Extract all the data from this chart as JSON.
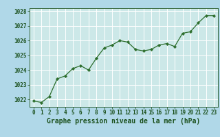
{
  "x": [
    0,
    1,
    2,
    3,
    4,
    5,
    6,
    7,
    8,
    9,
    10,
    11,
    12,
    13,
    14,
    15,
    16,
    17,
    18,
    19,
    20,
    21,
    22,
    23
  ],
  "y": [
    1021.9,
    1021.8,
    1022.2,
    1023.4,
    1023.6,
    1024.1,
    1024.3,
    1024.0,
    1024.8,
    1025.5,
    1025.7,
    1026.0,
    1025.9,
    1025.4,
    1025.3,
    1025.4,
    1025.7,
    1025.8,
    1025.6,
    1026.5,
    1026.6,
    1027.2,
    1027.7,
    1027.7
  ],
  "ylim": [
    1021.5,
    1028.2
  ],
  "xlim": [
    -0.5,
    23.5
  ],
  "yticks": [
    1022,
    1023,
    1024,
    1025,
    1026,
    1027,
    1028
  ],
  "xticks": [
    0,
    1,
    2,
    3,
    4,
    5,
    6,
    7,
    8,
    9,
    10,
    11,
    12,
    13,
    14,
    15,
    16,
    17,
    18,
    19,
    20,
    21,
    22,
    23
  ],
  "line_color": "#2d6e2d",
  "marker_color": "#2d6e2d",
  "fig_bg_color": "#b0d8e8",
  "plot_bg_color": "#cce8e8",
  "grid_color": "#ffffff",
  "title": "Graphe pression niveau de la mer (hPa)",
  "title_color": "#1a4f1a",
  "tick_color": "#1a4f1a",
  "title_fontsize": 7.0,
  "tick_fontsize": 5.5,
  "figsize": [
    3.2,
    2.0
  ],
  "dpi": 100
}
